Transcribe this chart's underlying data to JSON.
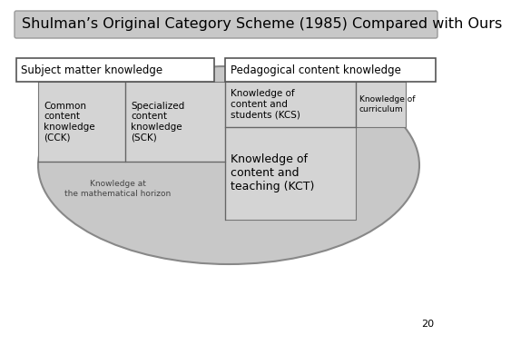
{
  "title": "Shulman’s Original Category Scheme (1985) Compared with Ours",
  "bg_color": "#ffffff",
  "title_bg": "#c8c8c8",
  "ellipse_fill": "#c8c8c8",
  "ellipse_edge": "#888888",
  "box_fill": "#d4d4d4",
  "box_edge": "#777777",
  "outer_box_fill": "#ffffff",
  "outer_box_edge": "#555555",
  "labels": {
    "subject_matter": "Subject matter knowledge",
    "pedagogical": "Pedagogical content knowledge",
    "cck": "Common\ncontent\nknowledge\n(CCK)",
    "sck": "Specialized\ncontent\nknowledge\n(SCK)",
    "kcs": "Knowledge of\ncontent and\nstudents (KCS)",
    "kct": "Knowledge of\ncontent and\nteaching (KCT)",
    "koc": "Knowledge of\ncurriculum",
    "horizon": "Knowledge at\nthe mathematical horizon"
  },
  "page_number": "20",
  "title_fontsize": 11.5,
  "label_fontsize": 8.5,
  "inner_fontsize": 7.5,
  "kct_fontsize": 9.0,
  "small_fontsize": 6.5
}
